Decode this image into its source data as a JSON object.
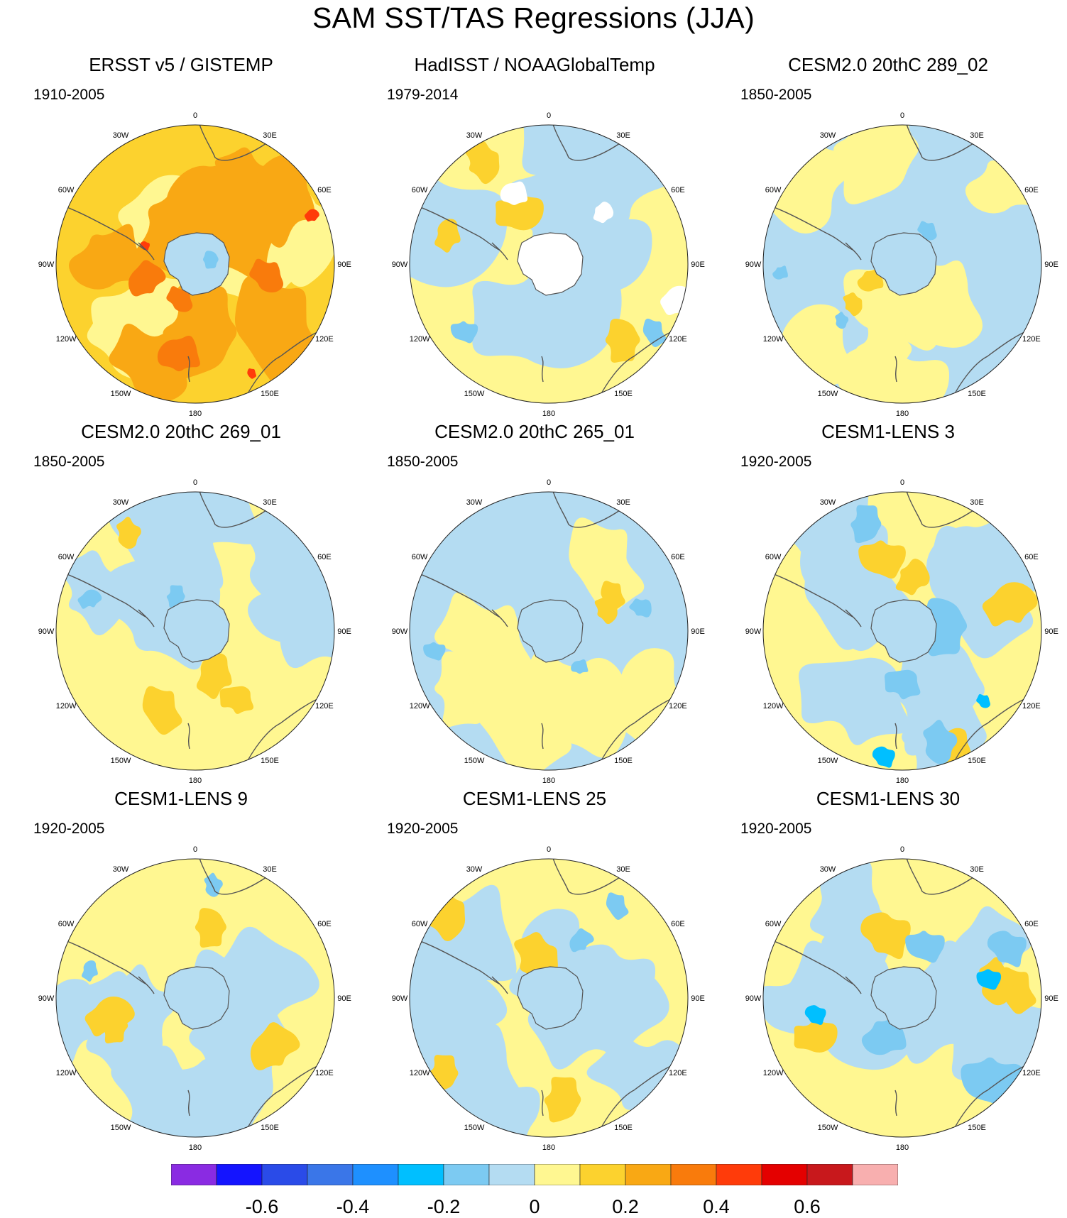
{
  "title": "SAM SST/TAS Regressions (JJA)",
  "lon_labels": [
    "0",
    "30E",
    "60E",
    "90E",
    "120E",
    "150E",
    "180",
    "150W",
    "120W",
    "90W",
    "60W",
    "30W"
  ],
  "panels": [
    {
      "title": "ERSST v5 / GISTEMP",
      "period": "1910-2005",
      "scheme": "warm"
    },
    {
      "title": "HadISST / NOAAGlobalTemp",
      "period": "1979-2014",
      "scheme": "mixed-missing"
    },
    {
      "title": "CESM2.0 20thC 289_02",
      "period": "1850-2005",
      "scheme": "cool"
    },
    {
      "title": "CESM2.0 20thC 269_01",
      "period": "1850-2005",
      "scheme": "mixed"
    },
    {
      "title": "CESM2.0 20thC 265_01",
      "period": "1850-2005",
      "scheme": "cool"
    },
    {
      "title": "CESM1-LENS 3",
      "period": "1920-2005",
      "scheme": "mixed-strong"
    },
    {
      "title": "CESM1-LENS 9",
      "period": "1920-2005",
      "scheme": "mixed"
    },
    {
      "title": "CESM1-LENS 25",
      "period": "1920-2005",
      "scheme": "mixed"
    },
    {
      "title": "CESM1-LENS 30",
      "period": "1920-2005",
      "scheme": "mixed-strong"
    }
  ],
  "colorbar": {
    "colors": [
      "#8a2be2",
      "#1414ff",
      "#2a4be8",
      "#3a76e8",
      "#1e90ff",
      "#00bfff",
      "#7ccaf2",
      "#b4dcf2",
      "#fff791",
      "#fcd22e",
      "#f9a814",
      "#f97b0c",
      "#ff3b0a",
      "#e40000",
      "#c8181c",
      "#f8afaf"
    ],
    "tick_labels": [
      "-0.6",
      "-0.4",
      "-0.2",
      "0",
      "0.2",
      "0.4",
      "0.6"
    ]
  }
}
